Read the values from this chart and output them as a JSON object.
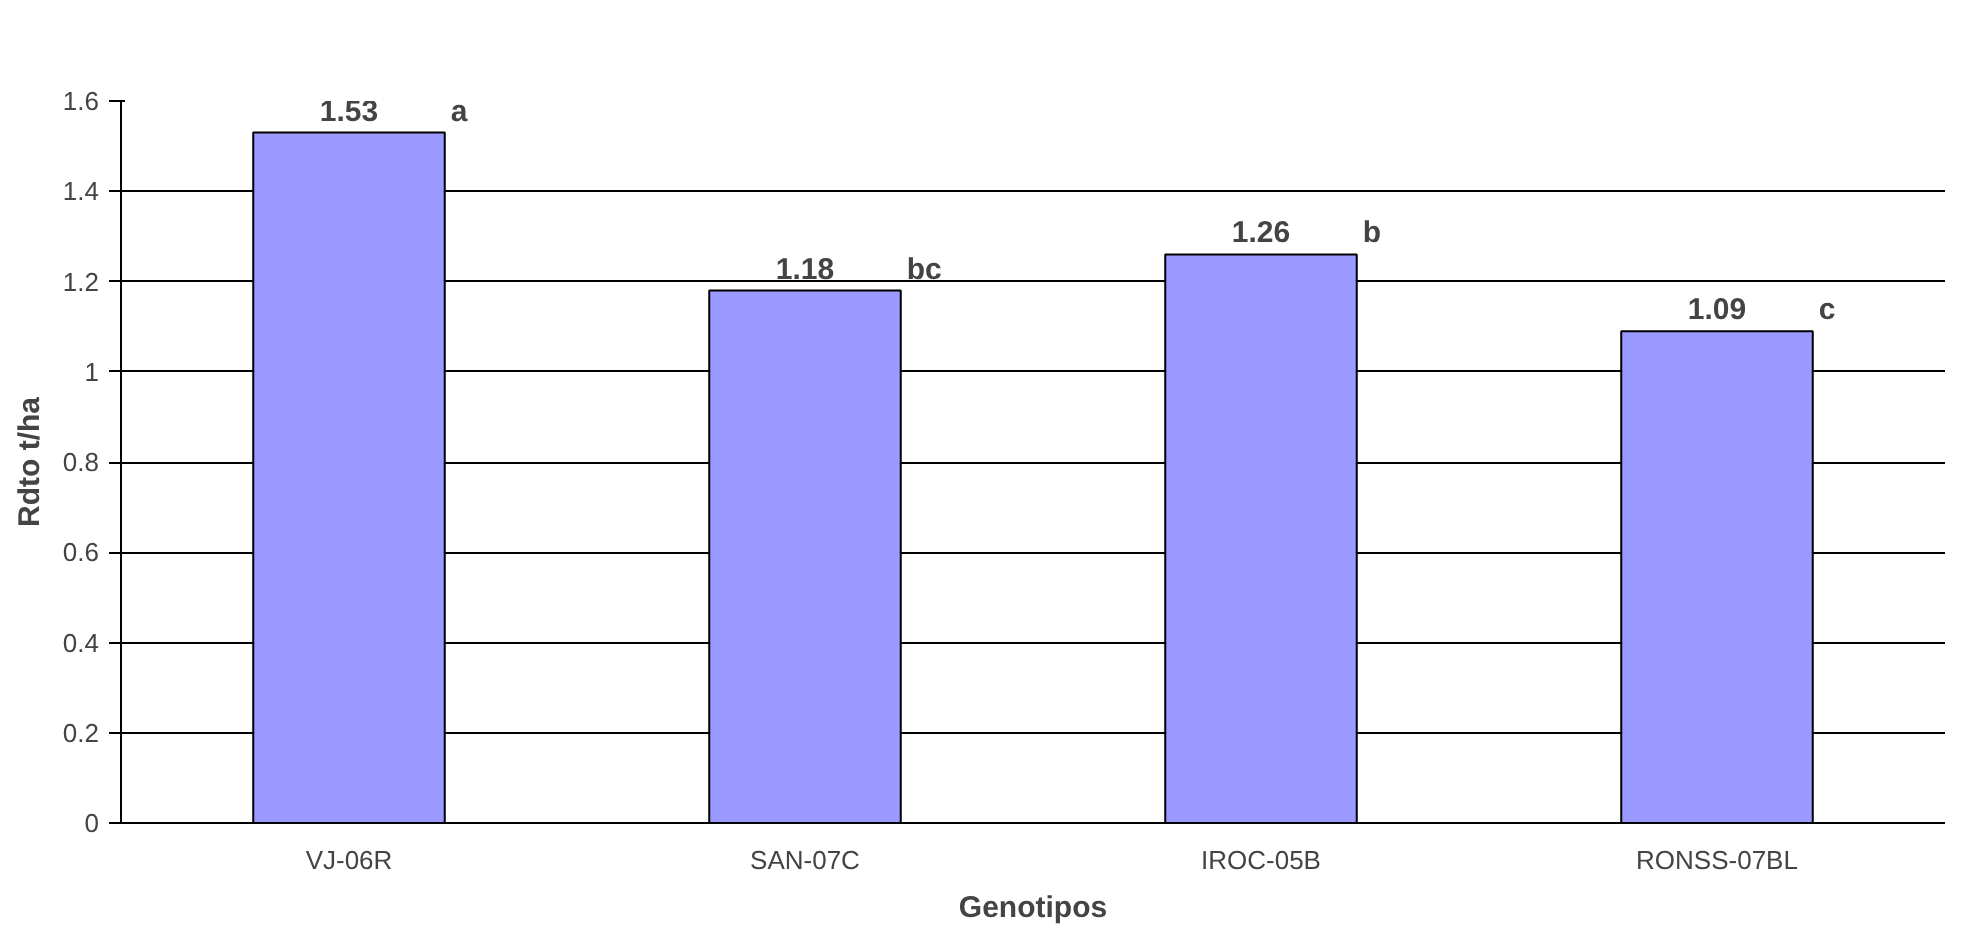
{
  "chart_data": {
    "type": "bar",
    "xlabel": "Genotipos",
    "ylabel": "Rdto t/ha",
    "categories": [
      "VJ-06R",
      "SAN-07C",
      "IROC-05B",
      "RONSS-07BL"
    ],
    "values": [
      1.53,
      1.18,
      1.26,
      1.09
    ],
    "color": "#9999ff",
    "data_labels": true,
    "ylim": [
      0,
      1.6
    ],
    "yticks": [
      0,
      0.2,
      0.4,
      0.6,
      0.8,
      1,
      1.2,
      1.4,
      1.6
    ],
    "grid": "y",
    "annotations": [
      "a",
      "bc",
      "b",
      "c"
    ]
  }
}
